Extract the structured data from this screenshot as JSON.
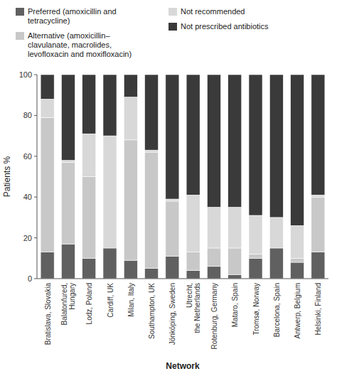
{
  "chart_data": {
    "type": "bar",
    "stacked": true,
    "legend": "top",
    "xlabel": "Network",
    "ylabel": "Patients %",
    "categories": [
      "Bratislava, Slovakia",
      "Balatonfured,\nHungary",
      "Lodz, Poland",
      "Cardiff, UK",
      "Milan, Italy",
      "Southampton, UK",
      "Jönköping, Sweden",
      "Utrecht,\nthe Netherlands",
      "Rotenburg, Germany",
      "Mataro, Spain",
      "Tromsø, Norway",
      "Barcelona, Spain",
      "Antwerp, Belgium",
      "Helsinki, Finland"
    ],
    "series": [
      {
        "name": "Preferred (amoxicillin and\ntetracycline)",
        "color": "#606060",
        "values": [
          13,
          17,
          10,
          15,
          9,
          5,
          11,
          4,
          6,
          2,
          10,
          15,
          8,
          13
        ]
      },
      {
        "name": "Alternative (amoxicillin–\nclavulanate, macrolides,\nlevofloxacin and moxifloxacin)",
        "color": "#c8c8c8",
        "values": [
          66,
          40,
          40,
          0,
          59,
          57,
          27,
          9,
          9,
          13,
          2,
          0,
          2,
          27
        ]
      },
      {
        "name": "Not recommended",
        "color": "#d8d8d8",
        "values": [
          9,
          1,
          21,
          55,
          21,
          1,
          1,
          28,
          20,
          20,
          19,
          15,
          16,
          1
        ]
      },
      {
        "name": "Not prescribed antibiotics",
        "color": "#3a3a3a",
        "values": [
          12,
          42,
          29,
          30,
          11,
          37,
          61,
          59,
          65,
          65,
          69,
          70,
          74,
          59
        ]
      }
    ],
    "ylim": [
      0,
      100
    ],
    "yticks": [
      0,
      20,
      40,
      60,
      80,
      100
    ]
  }
}
